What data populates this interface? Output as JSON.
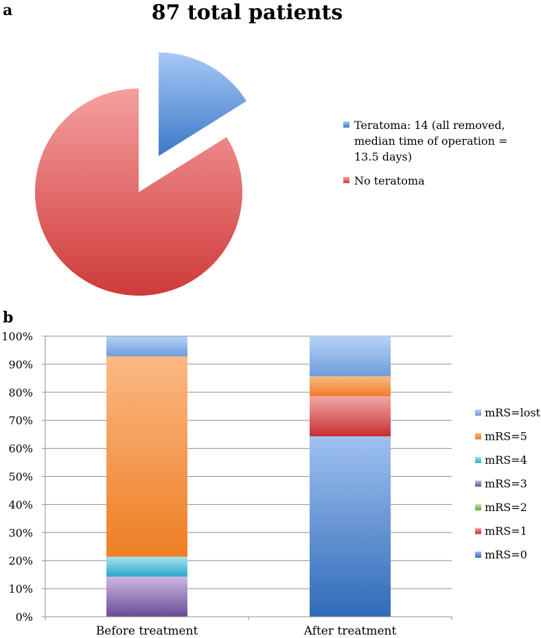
{
  "panel_a_label": "a",
  "panel_b_label": "b",
  "chart_data": [
    {
      "type": "pie",
      "title": "87 total patients",
      "total": 87,
      "slices": [
        {
          "key": "teratoma",
          "label_lines": [
            "Teratoma: 14 (all removed,",
            "median time of operation =",
            "13.5 days)"
          ],
          "value": 14,
          "color_light": "#a8c8f5",
          "color_dark": "#3a78c9",
          "exploded": true
        },
        {
          "key": "no_teratoma",
          "label_lines": [
            "No teratoma"
          ],
          "value": 73,
          "color_light": "#f5a0a0",
          "color_dark": "#cf3a3a",
          "exploded": false
        }
      ]
    },
    {
      "type": "bar",
      "stacked": true,
      "categories": [
        "Before treatment",
        "After treatment"
      ],
      "ylim": [
        0,
        100
      ],
      "yticks": [
        "0%",
        "10%",
        "20%",
        "30%",
        "40%",
        "50%",
        "60%",
        "70%",
        "80%",
        "90%",
        "100%"
      ],
      "grid": true,
      "legend_position": "right",
      "series": [
        {
          "name": "mRS=0",
          "values": [
            0,
            64.3
          ],
          "color_light": "#9fc0f0",
          "color_dark": "#2f6bb8"
        },
        {
          "name": "mRS=1",
          "values": [
            0,
            14.3
          ],
          "color_light": "#f4a7a7",
          "color_dark": "#c4302f"
        },
        {
          "name": "mRS=2",
          "values": [
            0,
            0
          ],
          "color_light": "#bfe39a",
          "color_dark": "#6aa938"
        },
        {
          "name": "mRS=3",
          "values": [
            14.3,
            0
          ],
          "color_light": "#cbb8e4",
          "color_dark": "#6a4b96"
        },
        {
          "name": "mRS=4",
          "values": [
            7.1,
            0
          ],
          "color_light": "#a8e2f0",
          "color_dark": "#29a9c8"
        },
        {
          "name": "mRS=5",
          "values": [
            71.4,
            7.1
          ],
          "color_light": "#fcb884",
          "color_dark": "#ee7e24"
        },
        {
          "name": "mRS=lost",
          "values": [
            7.1,
            14.3
          ],
          "color_light": "#b8d2f5",
          "color_dark": "#6e9ddc"
        }
      ]
    }
  ]
}
